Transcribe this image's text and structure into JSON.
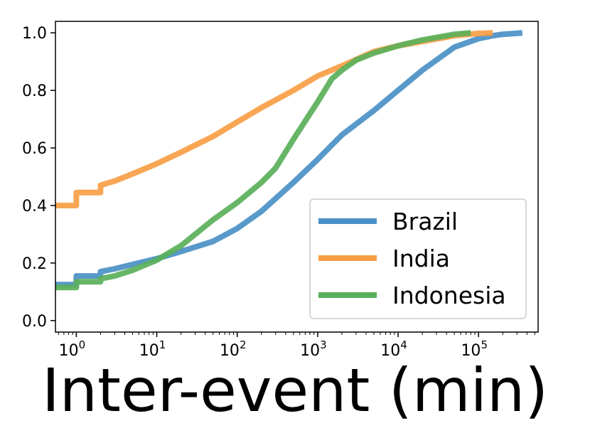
{
  "chart_data": {
    "type": "line",
    "title": "",
    "xlabel": "Inter-event  (min)",
    "ylabel": "",
    "x_scale": "log",
    "xlim": [
      0.55,
      550000
    ],
    "ylim": [
      -0.04,
      1.04
    ],
    "grid": false,
    "legend_position": "lower-right",
    "x_ticks": [
      {
        "base": "10",
        "exp": "0",
        "value": 1
      },
      {
        "base": "10",
        "exp": "1",
        "value": 10
      },
      {
        "base": "10",
        "exp": "2",
        "value": 100
      },
      {
        "base": "10",
        "exp": "3",
        "value": 1000
      },
      {
        "base": "10",
        "exp": "4",
        "value": 10000
      },
      {
        "base": "10",
        "exp": "5",
        "value": 100000
      }
    ],
    "y_ticks": [
      {
        "label": "0.0",
        "value": 0.0
      },
      {
        "label": "0.2",
        "value": 0.2
      },
      {
        "label": "0.4",
        "value": 0.4
      },
      {
        "label": "0.6",
        "value": 0.6
      },
      {
        "label": "0.8",
        "value": 0.8
      },
      {
        "label": "1.0",
        "value": 1.0
      }
    ],
    "series": [
      {
        "name": "Brazil",
        "color": "#4a90c6",
        "x": [
          0.55,
          1,
          1,
          2,
          2,
          3,
          5,
          10,
          20,
          50,
          100,
          200,
          500,
          1000,
          1500,
          2000,
          5000,
          10000,
          20000,
          50000,
          100000,
          150000,
          200000,
          350000
        ],
        "y": [
          0.125,
          0.125,
          0.155,
          0.155,
          0.17,
          0.18,
          0.195,
          0.215,
          0.24,
          0.275,
          0.32,
          0.38,
          0.48,
          0.56,
          0.61,
          0.645,
          0.73,
          0.8,
          0.87,
          0.95,
          0.98,
          0.99,
          0.995,
          1.0
        ]
      },
      {
        "name": "India",
        "color": "#f99e45",
        "x": [
          0.55,
          1,
          1,
          2,
          2,
          3,
          5,
          10,
          20,
          50,
          100,
          200,
          500,
          1000,
          2000,
          5000,
          10000,
          20000,
          50000,
          100000,
          150000
        ],
        "y": [
          0.4,
          0.4,
          0.445,
          0.445,
          0.47,
          0.485,
          0.51,
          0.545,
          0.585,
          0.64,
          0.69,
          0.74,
          0.8,
          0.85,
          0.885,
          0.935,
          0.955,
          0.97,
          0.99,
          0.998,
          1.0
        ]
      },
      {
        "name": "Indonesia",
        "color": "#5ab05a",
        "x": [
          0.55,
          1,
          1,
          2,
          2,
          3,
          5,
          10,
          20,
          50,
          100,
          200,
          300,
          500,
          1000,
          1500,
          2000,
          3000,
          5000,
          10000,
          20000,
          50000,
          80000
        ],
        "y": [
          0.115,
          0.115,
          0.135,
          0.135,
          0.145,
          0.155,
          0.175,
          0.21,
          0.26,
          0.35,
          0.41,
          0.48,
          0.53,
          0.63,
          0.76,
          0.84,
          0.87,
          0.905,
          0.93,
          0.955,
          0.975,
          0.995,
          1.0
        ]
      }
    ]
  }
}
